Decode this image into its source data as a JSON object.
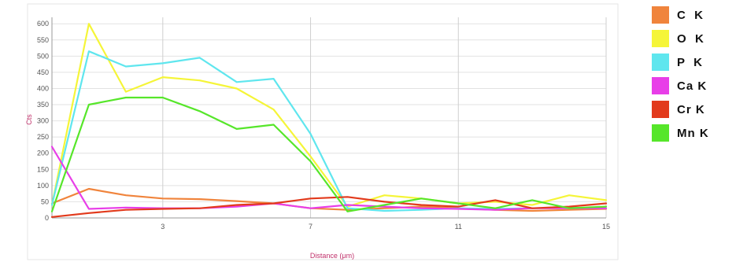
{
  "chart_data": {
    "type": "line",
    "xlabel": "Distance (μm)",
    "ylabel": "Cts",
    "xlim": [
      0,
      15
    ],
    "ylim": [
      0,
      620
    ],
    "x_ticks": [
      3,
      7,
      11,
      15
    ],
    "x_tick_labels": [
      "3",
      "7",
      "11",
      "15"
    ],
    "y_ticks": [
      0,
      50,
      100,
      150,
      200,
      250,
      300,
      350,
      400,
      450,
      500,
      550,
      600
    ],
    "y_tick_labels": [
      "0",
      "50",
      "100",
      "150",
      "200",
      "250",
      "300",
      "350",
      "400",
      "450",
      "500",
      "550",
      "600"
    ],
    "grid": "vertical",
    "legend_position": "right",
    "x": [
      0,
      1,
      2,
      3,
      4,
      5,
      6,
      7,
      8,
      9,
      10,
      11,
      12,
      13,
      14,
      15
    ],
    "series": [
      {
        "name": "C  K",
        "color": "#f0843c",
        "values": [
          45,
          90,
          70,
          60,
          58,
          52,
          45,
          30,
          25,
          30,
          35,
          30,
          25,
          22,
          25,
          28
        ]
      },
      {
        "name": "O  K",
        "color": "#f5f538",
        "values": [
          40,
          600,
          390,
          435,
          425,
          400,
          335,
          190,
          35,
          70,
          60,
          45,
          50,
          40,
          70,
          55
        ]
      },
      {
        "name": "P  K",
        "color": "#5fe6ee",
        "values": [
          40,
          515,
          468,
          478,
          495,
          420,
          430,
          260,
          30,
          22,
          25,
          30,
          28,
          30,
          32,
          30
        ]
      },
      {
        "name": "Ca K",
        "color": "#e83ee8",
        "values": [
          220,
          28,
          32,
          30,
          30,
          35,
          45,
          30,
          40,
          35,
          30,
          28,
          25,
          30,
          30,
          30
        ]
      },
      {
        "name": "Cr K",
        "color": "#e23a1c",
        "values": [
          3,
          15,
          25,
          28,
          30,
          40,
          45,
          60,
          65,
          50,
          40,
          35,
          55,
          30,
          35,
          45
        ]
      },
      {
        "name": "Mn K",
        "color": "#56e62a",
        "values": [
          20,
          350,
          372,
          372,
          330,
          275,
          288,
          175,
          20,
          40,
          60,
          45,
          30,
          55,
          30,
          35
        ]
      }
    ]
  }
}
